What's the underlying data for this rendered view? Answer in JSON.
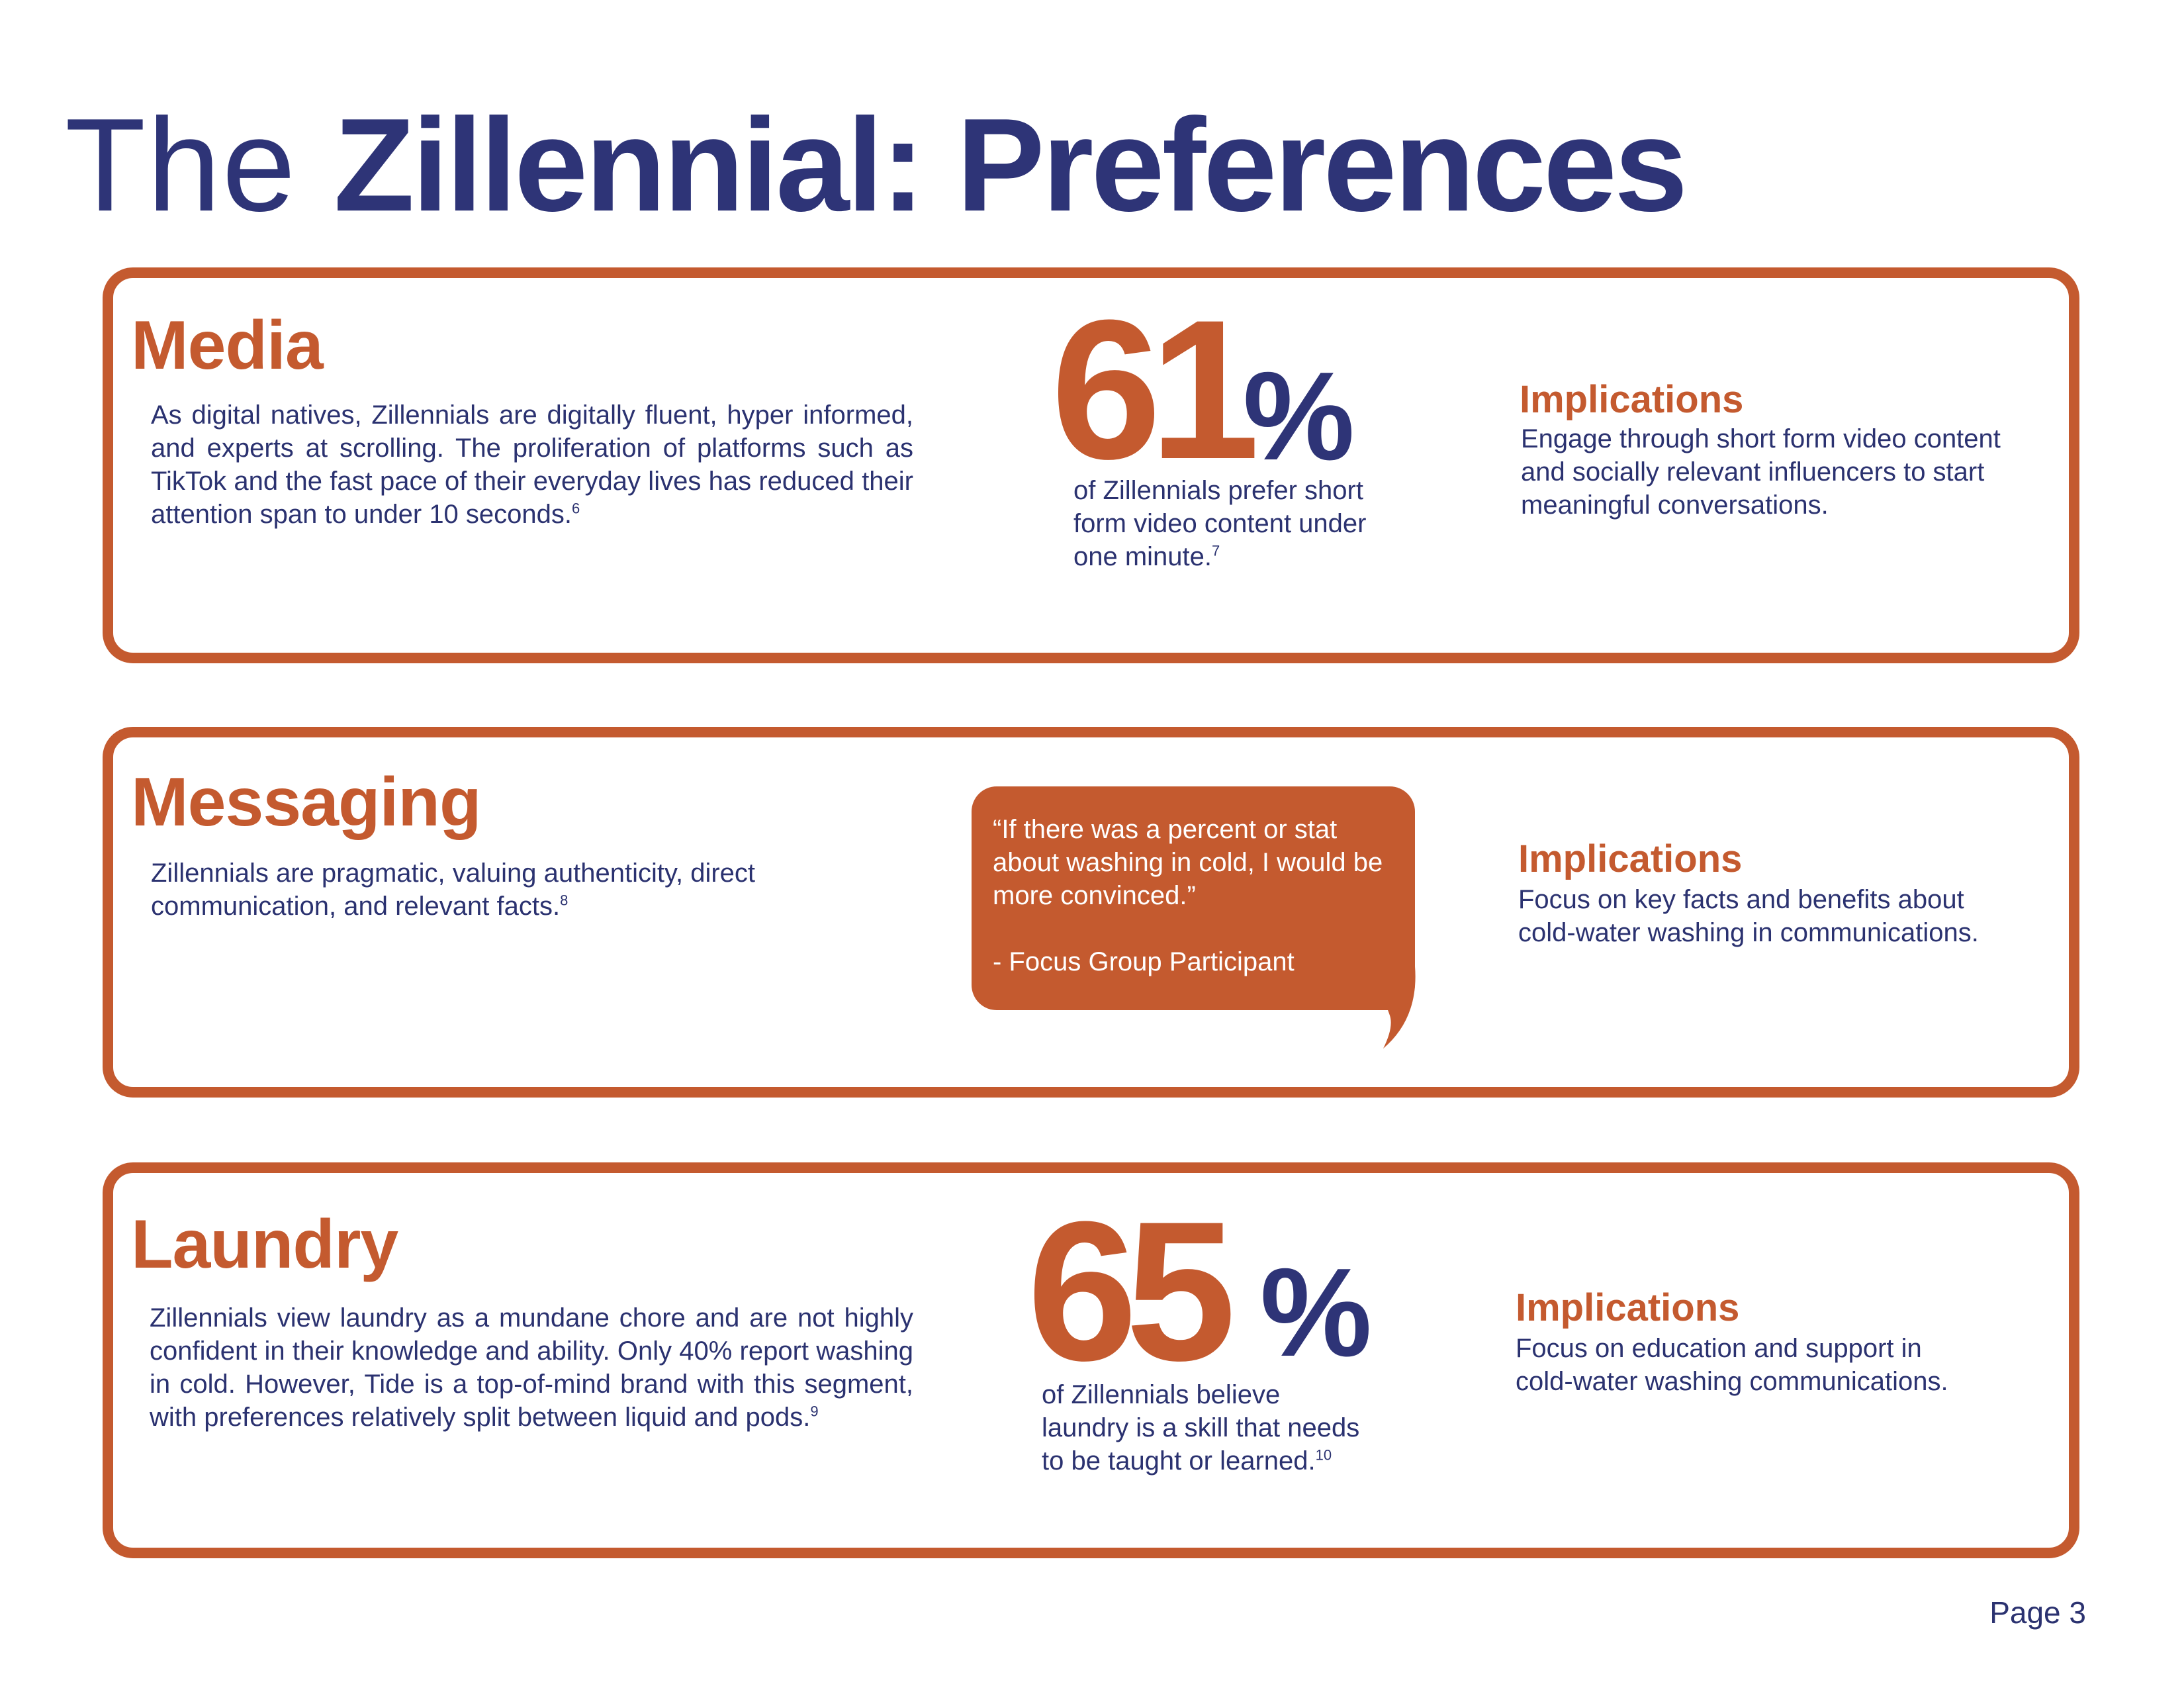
{
  "title": {
    "light": "The",
    "bold": "Zillennial: Preferences"
  },
  "media": {
    "heading": "Media",
    "body": "As digital natives, Zillennials are digitally fluent, hyper informed, and experts at scrolling. The proliferation of platforms such as TikTok and the fast pace of their everyday lives has reduced their attention span to under 10 seconds.",
    "body_ref": "6",
    "stat_value": "61",
    "stat_unit": "%",
    "stat_text": "of Zillennials prefer short form video content under one minute.",
    "stat_ref": "7",
    "implications_heading": "Implications",
    "implications_text": "Engage through short form video content and socially relevant influencers to start meaningful conversations."
  },
  "messaging": {
    "heading": "Messaging",
    "body": "Zillennials are pragmatic, valuing authenticity, direct communication, and relevant facts.",
    "body_ref": "8",
    "quote": "“If there was a percent or stat about washing in cold, I would be more convinced.”",
    "quote_attribution": "- Focus Group Participant",
    "implications_heading": "Implications",
    "implications_text": "Focus on key facts and benefits about cold-water washing in communications."
  },
  "laundry": {
    "heading": "Laundry",
    "body": "Zillennials view laundry as a mundane chore and are not highly confident in their knowledge and ability. Only 40% report washing in cold. However, Tide is a top-of-mind brand with this segment, with preferences relatively split between liquid and pods.",
    "body_ref": "9",
    "stat_value": "65",
    "stat_unit": "%",
    "stat_text": "of Zillennials believe laundry is a skill that needs to be taught or learned.",
    "stat_ref": "10",
    "implications_heading": "Implications",
    "implications_text": "Focus on education and support in cold-water washing communications."
  },
  "footer": {
    "page_label": "Page 3"
  },
  "colors": {
    "accent_orange": "#c45a2f",
    "navy": "#2e3477",
    "background": "#ffffff"
  }
}
